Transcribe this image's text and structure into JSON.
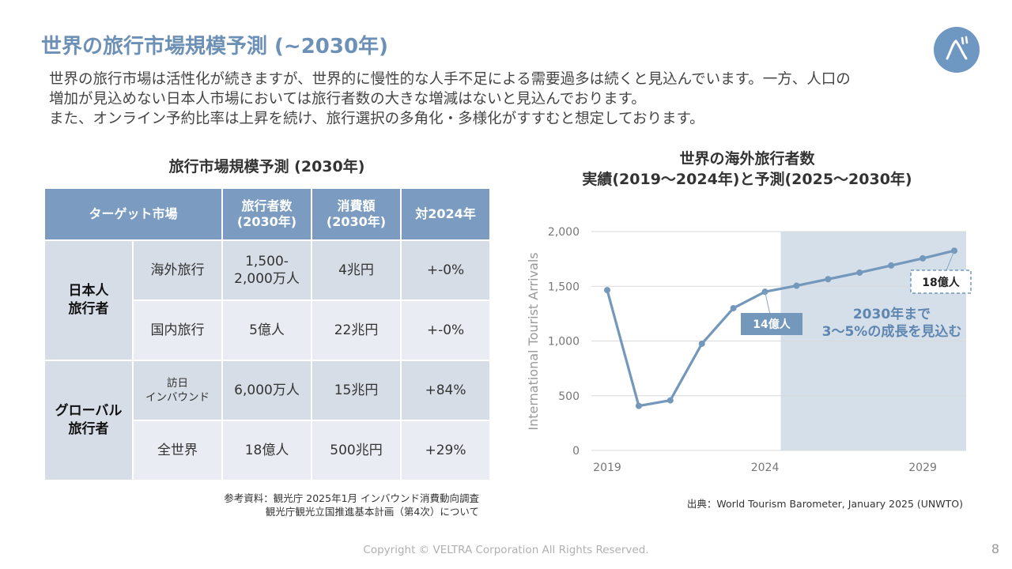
{
  "page": {
    "title": "世界の旅行市場規模予測 (~2030年)",
    "logo_label": "ベ",
    "intro_lines": [
      "世界の旅行市場は活性化が続きますが、世界的に慢性的な人手不足による需要過多は続くと見込んでいます。一方、人口の",
      "増加が見込めない日本人市場においては旅行者数の大きな増減はないと見込んでおります。",
      "また、オンライン予約比率は上昇を続け、旅行選択の多角化・多様化がすすむと想定しております。"
    ],
    "footer": "Copyright © VELTRA Corporation All Rights Reserved.",
    "page_number": "8"
  },
  "table": {
    "title": "旅行市場規模予測 (2030年)",
    "headers": {
      "market": "ターゲット市場",
      "travelers_1": "旅行者数",
      "travelers_2": "(2030年)",
      "spend_1": "消費額",
      "spend_2": "(2030年)",
      "vs2024": "対2024年"
    },
    "groups": [
      {
        "label_1": "日本人",
        "label_2": "旅行者",
        "rows": [
          {
            "segment_1": "海外旅行",
            "segment_2": "",
            "travelers_1": "1,500-",
            "travelers_2": "2,000万人",
            "spend": "4兆円",
            "change": "+-0%"
          },
          {
            "segment_1": "国内旅行",
            "segment_2": "",
            "travelers_1": "5億人",
            "travelers_2": "",
            "spend": "22兆円",
            "change": "+-0%"
          }
        ]
      },
      {
        "label_1": "グローバル",
        "label_2": "旅行者",
        "rows": [
          {
            "segment_1": "訪日",
            "segment_2": "インバウンド",
            "travelers_1": "6,000万人",
            "travelers_2": "",
            "spend": "15兆円",
            "change": "+84%"
          },
          {
            "segment_1": "全世界",
            "segment_2": "",
            "travelers_1": "18億人",
            "travelers_2": "",
            "spend": "500兆円",
            "change": "+29%"
          }
        ]
      }
    ],
    "reference_lines": [
      "参考資料：観光庁 2025年1月 インバウンド消費動向調査",
      "観光庁観光立国推進基本計画（第4次）について"
    ]
  },
  "chart_data": {
    "type": "line",
    "title_lines": [
      "世界の海外旅行者数",
      "実績(2019～2024年)と予測(2025～2030年)"
    ],
    "ylabel": "International Tourist Arrivals",
    "xlabel": "",
    "x": [
      2019,
      2020,
      2021,
      2022,
      2023,
      2024,
      2025,
      2026,
      2027,
      2028,
      2029,
      2030
    ],
    "series": [
      {
        "values": [
          1465,
          407,
          458,
          975,
          1300,
          1450,
          1505,
          1565,
          1625,
          1690,
          1755,
          1825
        ]
      }
    ],
    "xlim": [
      2019,
      2030
    ],
    "ylim": [
      0,
      2000
    ],
    "yticks": [
      0,
      500,
      1000,
      1500,
      2000
    ],
    "ytick_labels": [
      "0",
      "500",
      "1,000",
      "1,500",
      "2,000"
    ],
    "xticks": [
      2019,
      2024,
      2029
    ],
    "xtick_labels": [
      "2019",
      "2024",
      "2029"
    ],
    "grid": true,
    "forecast_region": [
      2025,
      2030
    ],
    "annotations": {
      "label_2024": "14億人",
      "label_2030": "18億人",
      "forecast_line_1": "2030年まで",
      "forecast_line_2": "3～5%の成長を見込む"
    },
    "source": "出典：World Tourism Barometer, January 2025 (UNWTO)",
    "colors": {
      "line": "#7497bc",
      "forecast_bg": "#d5dfe9",
      "callout": "#7497bc",
      "forecast_text": "#5e86b0"
    }
  }
}
